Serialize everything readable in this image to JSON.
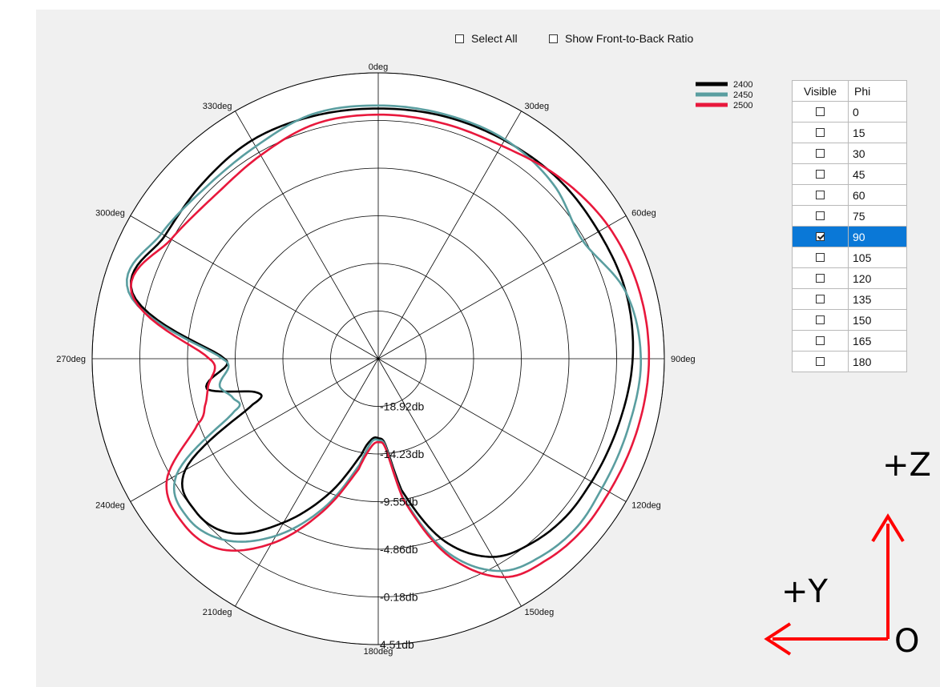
{
  "controls": {
    "select_all_label": "Select All",
    "select_all_checked": false,
    "front_to_back_label": "Show Front-to-Back Ratio",
    "front_to_back_checked": false
  },
  "phi_table": {
    "headers": [
      "Visible",
      "Phi"
    ],
    "rows": [
      {
        "phi": "0",
        "visible": false
      },
      {
        "phi": "15",
        "visible": false
      },
      {
        "phi": "30",
        "visible": false
      },
      {
        "phi": "45",
        "visible": false
      },
      {
        "phi": "60",
        "visible": false
      },
      {
        "phi": "75",
        "visible": false
      },
      {
        "phi": "90",
        "visible": true,
        "selected": true
      },
      {
        "phi": "105",
        "visible": false
      },
      {
        "phi": "120",
        "visible": false
      },
      {
        "phi": "135",
        "visible": false
      },
      {
        "phi": "150",
        "visible": false
      },
      {
        "phi": "165",
        "visible": false
      },
      {
        "phi": "180",
        "visible": false
      }
    ]
  },
  "axes_overlay": {
    "z_label": "+Z",
    "y_label": "+Y",
    "origin_label": "O",
    "arrow_color": "#ff0000"
  },
  "chart_data": {
    "type": "polar",
    "angle_labels": [
      "0deg",
      "330deg",
      "300deg",
      "270deg",
      "240deg",
      "210deg",
      "180deg",
      "150deg",
      "120deg",
      "90deg",
      "60deg",
      "30deg"
    ],
    "radial_labels": [
      "-18.92db",
      "-14.23db",
      "-9.55db",
      "-4.86db",
      "-0.18db",
      "4.51db"
    ],
    "rlim": [
      -23.61,
      4.51
    ],
    "theta_direction": "counterclockwise",
    "theta_zero": "top",
    "grid": true,
    "legend_position": "top-right",
    "series": [
      {
        "name": "2400",
        "color": "#000000",
        "theta": [
          0,
          15,
          30,
          45,
          60,
          75,
          90,
          100,
          105,
          110,
          120,
          130,
          140,
          150,
          160,
          170,
          175,
          180,
          185,
          190,
          200,
          210,
          220,
          230,
          240,
          255,
          270,
          285,
          300,
          315,
          330,
          345
        ],
        "r_db": [
          1.0,
          1.1,
          1.2,
          0.8,
          0.6,
          1.4,
          -8.5,
          -6.5,
          -11.0,
          -10.5,
          -1.7,
          -0.2,
          -1.2,
          -5.0,
          -9.5,
          -14.0,
          -15.6,
          -15.8,
          -15.0,
          -10.5,
          -4.5,
          -1.1,
          0.0,
          0.5,
          0.6,
          0.9,
          1.4,
          1.6,
          1.4,
          1.4,
          1.2,
          1.1
        ]
      },
      {
        "name": "2450",
        "color": "#5a9ea0",
        "theta": [
          0,
          15,
          30,
          45,
          60,
          75,
          90,
          100,
          105,
          110,
          120,
          130,
          140,
          150,
          160,
          170,
          175,
          180,
          185,
          190,
          200,
          210,
          220,
          230,
          240,
          255,
          270,
          285,
          300,
          315,
          330,
          345
        ],
        "r_db": [
          1.3,
          1.3,
          0.5,
          0.3,
          1.0,
          1.8,
          -8.3,
          -7.8,
          -8.8,
          -8.6,
          -0.7,
          0.8,
          -0.3,
          -3.5,
          -8.0,
          -13.0,
          -15.3,
          -15.6,
          -14.8,
          -9.8,
          -3.2,
          0.5,
          1.6,
          2.0,
          1.8,
          1.9,
          2.2,
          1.6,
          -0.4,
          0.7,
          1.3,
          1.3
        ]
      },
      {
        "name": "2500",
        "color": "#e8183c",
        "theta": [
          0,
          15,
          30,
          45,
          60,
          75,
          90,
          100,
          105,
          110,
          120,
          130,
          140,
          150,
          160,
          170,
          175,
          180,
          185,
          190,
          200,
          210,
          220,
          230,
          240,
          255,
          270,
          285,
          300,
          315,
          330,
          345
        ],
        "r_db": [
          0.4,
          0.3,
          -0.5,
          -0.9,
          -0.1,
          1.5,
          -7.0,
          -6.6,
          -6.0,
          -4.7,
          0.4,
          1.5,
          0.8,
          -2.6,
          -7.6,
          -12.6,
          -14.8,
          -15.4,
          -14.6,
          -9.6,
          -2.8,
          1.2,
          2.2,
          2.6,
          2.6,
          2.8,
          3.0,
          2.9,
          2.5,
          1.6,
          0.6,
          0.4
        ]
      }
    ]
  }
}
